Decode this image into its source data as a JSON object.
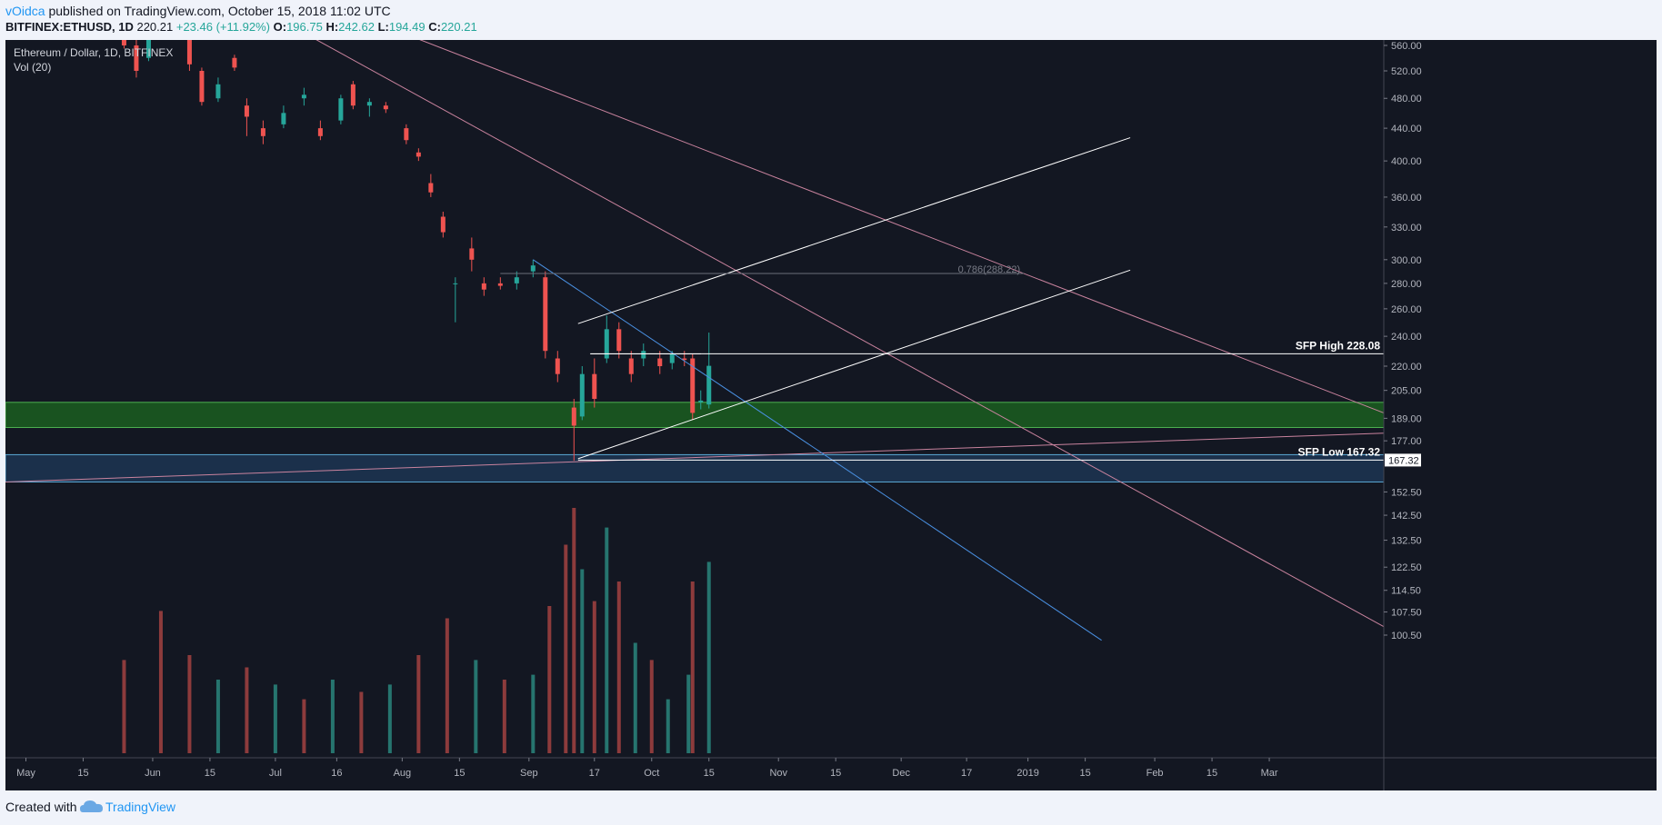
{
  "header": {
    "author": "vOidca",
    "published_text": " published on TradingView.com, October 15, 2018 11:02 UTC",
    "symbol": "BITFINEX:ETHUSD, 1D",
    "last": "220.21",
    "change": "+23.46 (+11.92%)",
    "o_label": "O:",
    "o_value": "196.75",
    "h_label": "H:",
    "h_value": "242.62",
    "l_label": "L:",
    "l_value": "194.49",
    "c_label": "C:",
    "c_value": "220.21"
  },
  "footer": {
    "created": "Created with",
    "brand": "TradingView"
  },
  "colors": {
    "background": "#131722",
    "up": "#26a69a",
    "down": "#ef5350",
    "vol_up": "#26756f",
    "vol_down": "#8d3b3c",
    "trend_pink": "#c9839e",
    "trend_blue": "#4a90e2",
    "white_line": "#ffffff",
    "green_zone": "#1b5e20",
    "blue_zone": "#1d3552"
  },
  "chart_data": {
    "type": "candlestick",
    "title": "Ethereum / Dollar, 1D, BITFINEX",
    "indicator": "Vol (20)",
    "y_scale": "log",
    "y_ticks": [
      "560.00",
      "520.00",
      "480.00",
      "440.00",
      "400.00",
      "360.00",
      "330.00",
      "300.00",
      "280.00",
      "260.00",
      "240.00",
      "220.00",
      "205.00",
      "189.00",
      "177.00",
      "167.32",
      "152.50",
      "142.50",
      "132.50",
      "122.50",
      "114.50",
      "107.50",
      "100.50"
    ],
    "x_ticks": [
      "May",
      "15",
      "Jun",
      "15",
      "Jul",
      "16",
      "Aug",
      "15",
      "Sep",
      "17",
      "Oct",
      "15",
      "Nov",
      "15",
      "Dec",
      "17",
      "2019",
      "15",
      "Feb",
      "15",
      "Mar"
    ],
    "x_range": [
      "2018-04-26",
      "2019-03-29"
    ],
    "candles": [
      {
        "date": "2018-05-25",
        "o": 585,
        "h": 600,
        "l": 555,
        "c": 560
      },
      {
        "date": "2018-05-28",
        "o": 560,
        "h": 580,
        "l": 510,
        "c": 520
      },
      {
        "date": "2018-05-31",
        "o": 540,
        "h": 585,
        "l": 535,
        "c": 575
      },
      {
        "date": "2018-06-10",
        "o": 600,
        "h": 600,
        "l": 520,
        "c": 530
      },
      {
        "date": "2018-06-13",
        "o": 520,
        "h": 525,
        "l": 470,
        "c": 475
      },
      {
        "date": "2018-06-17",
        "o": 480,
        "h": 510,
        "l": 475,
        "c": 500
      },
      {
        "date": "2018-06-21",
        "o": 540,
        "h": 545,
        "l": 520,
        "c": 525
      },
      {
        "date": "2018-06-24",
        "o": 470,
        "h": 480,
        "l": 430,
        "c": 455
      },
      {
        "date": "2018-06-28",
        "o": 440,
        "h": 450,
        "l": 420,
        "c": 430
      },
      {
        "date": "2018-07-03",
        "o": 445,
        "h": 470,
        "l": 440,
        "c": 460
      },
      {
        "date": "2018-07-08",
        "o": 480,
        "h": 495,
        "l": 470,
        "c": 485
      },
      {
        "date": "2018-07-12",
        "o": 440,
        "h": 450,
        "l": 425,
        "c": 430
      },
      {
        "date": "2018-07-17",
        "o": 450,
        "h": 485,
        "l": 445,
        "c": 480
      },
      {
        "date": "2018-07-20",
        "o": 500,
        "h": 505,
        "l": 465,
        "c": 470
      },
      {
        "date": "2018-07-24",
        "o": 470,
        "h": 480,
        "l": 455,
        "c": 475
      },
      {
        "date": "2018-07-28",
        "o": 470,
        "h": 475,
        "l": 460,
        "c": 465
      },
      {
        "date": "2018-08-02",
        "o": 440,
        "h": 445,
        "l": 420,
        "c": 425
      },
      {
        "date": "2018-08-05",
        "o": 410,
        "h": 415,
        "l": 400,
        "c": 405
      },
      {
        "date": "2018-08-08",
        "o": 375,
        "h": 385,
        "l": 360,
        "c": 365
      },
      {
        "date": "2018-08-11",
        "o": 340,
        "h": 345,
        "l": 320,
        "c": 325
      },
      {
        "date": "2018-08-14",
        "o": 280,
        "h": 285,
        "l": 250,
        "c": 280
      },
      {
        "date": "2018-08-18",
        "o": 310,
        "h": 320,
        "l": 290,
        "c": 300
      },
      {
        "date": "2018-08-21",
        "o": 280,
        "h": 285,
        "l": 270,
        "c": 275
      },
      {
        "date": "2018-08-25",
        "o": 280,
        "h": 285,
        "l": 275,
        "c": 278
      },
      {
        "date": "2018-08-29",
        "o": 280,
        "h": 290,
        "l": 275,
        "c": 285
      },
      {
        "date": "2018-09-02",
        "o": 290,
        "h": 300,
        "l": 285,
        "c": 295
      },
      {
        "date": "2018-09-05",
        "o": 285,
        "h": 290,
        "l": 225,
        "c": 230
      },
      {
        "date": "2018-09-08",
        "o": 225,
        "h": 230,
        "l": 210,
        "c": 215
      },
      {
        "date": "2018-09-12",
        "o": 195,
        "h": 200,
        "l": 167,
        "c": 185
      },
      {
        "date": "2018-09-14",
        "o": 190,
        "h": 220,
        "l": 188,
        "c": 215
      },
      {
        "date": "2018-09-17",
        "o": 215,
        "h": 225,
        "l": 195,
        "c": 200
      },
      {
        "date": "2018-09-20",
        "o": 225,
        "h": 255,
        "l": 222,
        "c": 245
      },
      {
        "date": "2018-09-23",
        "o": 245,
        "h": 250,
        "l": 225,
        "c": 230
      },
      {
        "date": "2018-09-26",
        "o": 225,
        "h": 230,
        "l": 210,
        "c": 215
      },
      {
        "date": "2018-09-29",
        "o": 225,
        "h": 235,
        "l": 220,
        "c": 230
      },
      {
        "date": "2018-10-03",
        "o": 225,
        "h": 230,
        "l": 215,
        "c": 220
      },
      {
        "date": "2018-10-06",
        "o": 222,
        "h": 230,
        "l": 218,
        "c": 228
      },
      {
        "date": "2018-10-09",
        "o": 225,
        "h": 230,
        "l": 220,
        "c": 224
      },
      {
        "date": "2018-10-11",
        "o": 225,
        "h": 228,
        "l": 188,
        "c": 192
      },
      {
        "date": "2018-10-13",
        "o": 198,
        "h": 205,
        "l": 194,
        "c": 199
      },
      {
        "date": "2018-10-15",
        "o": 196.75,
        "h": 242.62,
        "l": 194.49,
        "c": 220.21
      }
    ],
    "volume": [
      {
        "date": "2018-05-25",
        "v": 38,
        "up": false
      },
      {
        "date": "2018-06-03",
        "v": 58,
        "up": false
      },
      {
        "date": "2018-06-10",
        "v": 40,
        "up": false
      },
      {
        "date": "2018-06-17",
        "v": 30,
        "up": true
      },
      {
        "date": "2018-06-24",
        "v": 35,
        "up": false
      },
      {
        "date": "2018-07-01",
        "v": 28,
        "up": true
      },
      {
        "date": "2018-07-08",
        "v": 22,
        "up": false
      },
      {
        "date": "2018-07-15",
        "v": 30,
        "up": true
      },
      {
        "date": "2018-07-22",
        "v": 25,
        "up": false
      },
      {
        "date": "2018-07-29",
        "v": 28,
        "up": true
      },
      {
        "date": "2018-08-05",
        "v": 40,
        "up": false
      },
      {
        "date": "2018-08-12",
        "v": 55,
        "up": false
      },
      {
        "date": "2018-08-19",
        "v": 38,
        "up": true
      },
      {
        "date": "2018-08-26",
        "v": 30,
        "up": false
      },
      {
        "date": "2018-09-02",
        "v": 32,
        "up": true
      },
      {
        "date": "2018-09-06",
        "v": 60,
        "up": false
      },
      {
        "date": "2018-09-10",
        "v": 85,
        "up": false
      },
      {
        "date": "2018-09-12",
        "v": 100,
        "up": false
      },
      {
        "date": "2018-09-14",
        "v": 75,
        "up": true
      },
      {
        "date": "2018-09-17",
        "v": 62,
        "up": false
      },
      {
        "date": "2018-09-20",
        "v": 92,
        "up": true
      },
      {
        "date": "2018-09-23",
        "v": 70,
        "up": false
      },
      {
        "date": "2018-09-27",
        "v": 45,
        "up": true
      },
      {
        "date": "2018-10-01",
        "v": 38,
        "up": false
      },
      {
        "date": "2018-10-05",
        "v": 22,
        "up": true
      },
      {
        "date": "2018-10-10",
        "v": 32,
        "up": true
      },
      {
        "date": "2018-10-11",
        "v": 70,
        "up": false
      },
      {
        "date": "2018-10-15",
        "v": 78,
        "up": true
      }
    ],
    "zones": [
      {
        "name": "green-zone",
        "from": 184,
        "to": 198
      },
      {
        "name": "blue-zone",
        "from": 157,
        "to": 170
      }
    ],
    "levels": [
      {
        "name": "sfp-high",
        "value": 228.08,
        "label": "SFP High 228.08",
        "tag": "228.08"
      },
      {
        "name": "sfp-low",
        "value": 167.32,
        "label": "SFP Low 167.32",
        "tag": "167.32"
      }
    ],
    "fib": {
      "label": "0.786(288.22)",
      "value": 288.22,
      "from": "2018-08-25",
      "to": "2018-12-31"
    },
    "trendlines": [
      {
        "name": "pink-upper",
        "color": "trend_pink",
        "p1": {
          "date": "2018-07-25",
          "price": 600
        },
        "p2": {
          "date": "2019-03-29",
          "price": 192
        }
      },
      {
        "name": "pink-middle",
        "color": "trend_pink",
        "p1": {
          "date": "2018-06-28",
          "price": 620
        },
        "p2": {
          "date": "2019-03-29",
          "price": 103
        }
      },
      {
        "name": "pink-lower",
        "color": "trend_pink",
        "p1": {
          "date": "2018-04-26",
          "price": 157
        },
        "p2": {
          "date": "2019-03-29",
          "price": 181
        }
      },
      {
        "name": "blue-downtrend",
        "color": "trend_blue",
        "p1": {
          "date": "2018-09-02",
          "price": 300
        },
        "p2": {
          "date": "2019-01-19",
          "price": 99
        }
      },
      {
        "name": "white-channel-upper",
        "color": "white_line",
        "p1": {
          "date": "2018-09-13",
          "price": 249
        },
        "p2": {
          "date": "2019-01-26",
          "price": 428
        }
      },
      {
        "name": "white-channel-lower",
        "color": "white_line",
        "p1": {
          "date": "2018-09-13",
          "price": 168
        },
        "p2": {
          "date": "2019-01-26",
          "price": 291
        }
      },
      {
        "name": "white-box-top",
        "color": "white_line",
        "p1": {
          "date": "2018-09-16",
          "price": 228
        },
        "p2": {
          "date": "2018-10-13",
          "price": 228
        }
      }
    ]
  }
}
